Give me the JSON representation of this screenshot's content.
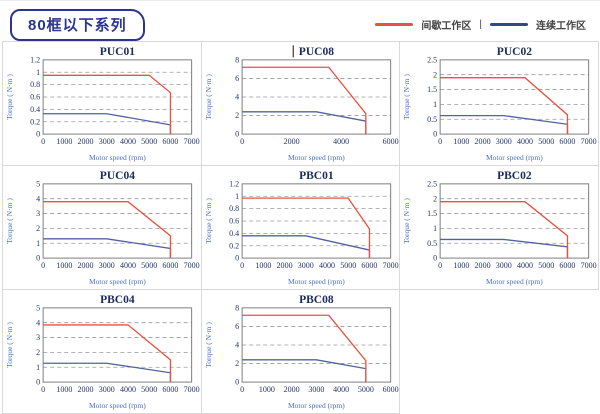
{
  "header": {
    "series_badge": "80框以下系列"
  },
  "legend": {
    "intermittent_label": "间歇工作区",
    "separator": "|",
    "continuous_label": "连续工作区"
  },
  "axis_labels": {
    "x": "Motor speed (rpm)",
    "y": "Torque ( N·m )"
  },
  "colors": {
    "intermittent": "#E8533F",
    "continuous": "#51629F",
    "legend_continuous": "#2B4A8B",
    "grid": "#9A9A9A",
    "frame": "#7F7F7F",
    "title_text": "#1C2B5A",
    "tick_text": "#24356B",
    "axis_text": "#4A71C0",
    "cell_border": "#D9D9D9",
    "badge": "#2B3590",
    "caret": "#555555"
  },
  "chart_data": [
    {
      "type": "line",
      "title": "PUC01",
      "xlabel": "Motor speed (rpm)",
      "ylabel": "Torque ( N·m )",
      "xlim": [
        0,
        7000
      ],
      "xticks": [
        0,
        1000,
        2000,
        3000,
        4000,
        5000,
        6000,
        7000
      ],
      "ylim": [
        0,
        1.2
      ],
      "yticks": [
        0,
        0.2,
        0.4,
        0.6,
        0.8,
        1,
        1.2
      ],
      "series": [
        {
          "name": "间歇工作区",
          "color": "#E8533F",
          "points": [
            [
              0,
              0.95
            ],
            [
              5000,
              0.95
            ],
            [
              6000,
              0.67
            ],
            [
              6000,
              0
            ]
          ]
        },
        {
          "name": "连续工作区",
          "color": "#51629F",
          "points": [
            [
              0,
              0.33
            ],
            [
              3000,
              0.33
            ],
            [
              6000,
              0.15
            ],
            [
              6000,
              0
            ]
          ]
        }
      ]
    },
    {
      "type": "line",
      "title": "PUC08",
      "caret": true,
      "xlabel": "Motor speed (rpm)",
      "ylabel": "Torque ( N·m )",
      "xlim": [
        0,
        6000
      ],
      "xticks": [
        0,
        2000,
        4000,
        6000
      ],
      "ylim": [
        0,
        8
      ],
      "yticks": [
        0,
        2,
        4,
        6,
        8
      ],
      "series": [
        {
          "name": "间歇工作区",
          "color": "#E8533F",
          "points": [
            [
              0,
              7.2
            ],
            [
              3500,
              7.2
            ],
            [
              5000,
              2.2
            ],
            [
              5000,
              0
            ]
          ]
        },
        {
          "name": "连续工作区",
          "color": "#51629F",
          "points": [
            [
              0,
              2.4
            ],
            [
              3000,
              2.4
            ],
            [
              5000,
              1.4
            ],
            [
              5000,
              0
            ]
          ]
        }
      ]
    },
    {
      "type": "line",
      "title": "PUC02",
      "xlabel": "Motor speed (rpm)",
      "ylabel": "Torque ( N·m )",
      "xlim": [
        0,
        7000
      ],
      "xticks": [
        0,
        1000,
        2000,
        3000,
        4000,
        5000,
        6000,
        7000
      ],
      "ylim": [
        0,
        2.5
      ],
      "yticks": [
        0,
        0.5,
        1,
        1.5,
        2,
        2.5
      ],
      "series": [
        {
          "name": "间歇工作区",
          "color": "#E8533F",
          "points": [
            [
              0,
              1.9
            ],
            [
              4000,
              1.9
            ],
            [
              6000,
              0.65
            ],
            [
              6000,
              0
            ]
          ]
        },
        {
          "name": "连续工作区",
          "color": "#51629F",
          "points": [
            [
              0,
              0.62
            ],
            [
              3000,
              0.62
            ],
            [
              6000,
              0.33
            ],
            [
              6000,
              0
            ]
          ]
        }
      ]
    },
    {
      "type": "line",
      "title": "PUC04",
      "xlabel": "Motor speed (rpm)",
      "ylabel": "Torque ( N·m )",
      "xlim": [
        0,
        7000
      ],
      "xticks": [
        0,
        1000,
        2000,
        3000,
        4000,
        5000,
        6000,
        7000
      ],
      "ylim": [
        0,
        5
      ],
      "yticks": [
        0,
        1,
        2,
        3,
        4,
        5
      ],
      "series": [
        {
          "name": "间歇工作区",
          "color": "#E8533F",
          "points": [
            [
              0,
              3.8
            ],
            [
              4000,
              3.8
            ],
            [
              6000,
              1.5
            ],
            [
              6000,
              0
            ]
          ]
        },
        {
          "name": "连续工作区",
          "color": "#51629F",
          "points": [
            [
              0,
              1.3
            ],
            [
              3000,
              1.3
            ],
            [
              6000,
              0.65
            ],
            [
              6000,
              0
            ]
          ]
        }
      ]
    },
    {
      "type": "line",
      "title": "PBC01",
      "xlabel": "Motor speed (rpm)",
      "ylabel": "Torque ( N·m )",
      "xlim": [
        0,
        7000
      ],
      "xticks": [
        0,
        1000,
        2000,
        3000,
        4000,
        5000,
        6000,
        7000
      ],
      "ylim": [
        0,
        1.2
      ],
      "yticks": [
        0,
        0.2,
        0.4,
        0.6,
        0.8,
        1,
        1.2
      ],
      "series": [
        {
          "name": "间歇工作区",
          "color": "#E8533F",
          "points": [
            [
              0,
              0.97
            ],
            [
              5000,
              0.97
            ],
            [
              6000,
              0.47
            ],
            [
              6000,
              0
            ]
          ]
        },
        {
          "name": "连续工作区",
          "color": "#51629F",
          "points": [
            [
              0,
              0.36
            ],
            [
              3000,
              0.36
            ],
            [
              6000,
              0.13
            ],
            [
              6000,
              0
            ]
          ]
        }
      ]
    },
    {
      "type": "line",
      "title": "PBC02",
      "xlabel": "Motor speed (rpm)",
      "ylabel": "Torque ( N·m )",
      "xlim": [
        0,
        7000
      ],
      "xticks": [
        0,
        1000,
        2000,
        3000,
        4000,
        5000,
        6000,
        7000
      ],
      "ylim": [
        0,
        2.5
      ],
      "yticks": [
        0,
        0.5,
        1,
        1.5,
        2,
        2.5
      ],
      "series": [
        {
          "name": "间歇工作区",
          "color": "#E8533F",
          "points": [
            [
              0,
              1.9
            ],
            [
              4000,
              1.9
            ],
            [
              6000,
              0.75
            ],
            [
              6000,
              0
            ]
          ]
        },
        {
          "name": "连续工作区",
          "color": "#51629F",
          "points": [
            [
              0,
              0.63
            ],
            [
              3000,
              0.63
            ],
            [
              6000,
              0.38
            ],
            [
              6000,
              0
            ]
          ]
        }
      ]
    },
    {
      "type": "line",
      "title": "PBC04",
      "xlabel": "Motor speed (rpm)",
      "ylabel": "Torque ( N·m )",
      "xlim": [
        0,
        7000
      ],
      "xticks": [
        0,
        1000,
        2000,
        3000,
        4000,
        5000,
        6000,
        7000
      ],
      "ylim": [
        0,
        5
      ],
      "yticks": [
        0,
        1,
        2,
        3,
        4,
        5
      ],
      "series": [
        {
          "name": "间歇工作区",
          "color": "#E8533F",
          "points": [
            [
              0,
              3.85
            ],
            [
              4000,
              3.85
            ],
            [
              6000,
              1.5
            ],
            [
              6000,
              0
            ]
          ]
        },
        {
          "name": "连续工作区",
          "color": "#51629F",
          "points": [
            [
              0,
              1.27
            ],
            [
              3000,
              1.27
            ],
            [
              6000,
              0.63
            ],
            [
              6000,
              0
            ]
          ]
        }
      ]
    },
    {
      "type": "line",
      "title": "PBC08",
      "xlabel": "Motor speed (rpm)",
      "ylabel": "Torque ( N·m )",
      "xlim": [
        0,
        6000
      ],
      "xticks": [
        0,
        1000,
        2000,
        3000,
        4000,
        5000,
        6000
      ],
      "ylim": [
        0,
        8
      ],
      "yticks": [
        0,
        2,
        4,
        6,
        8
      ],
      "series": [
        {
          "name": "间歇工作区",
          "color": "#E8533F",
          "points": [
            [
              0,
              7.2
            ],
            [
              3500,
              7.2
            ],
            [
              5000,
              2.3
            ],
            [
              5000,
              0
            ]
          ]
        },
        {
          "name": "连续工作区",
          "color": "#51629F",
          "points": [
            [
              0,
              2.4
            ],
            [
              3000,
              2.4
            ],
            [
              5000,
              1.45
            ],
            [
              5000,
              0
            ]
          ]
        }
      ]
    }
  ]
}
